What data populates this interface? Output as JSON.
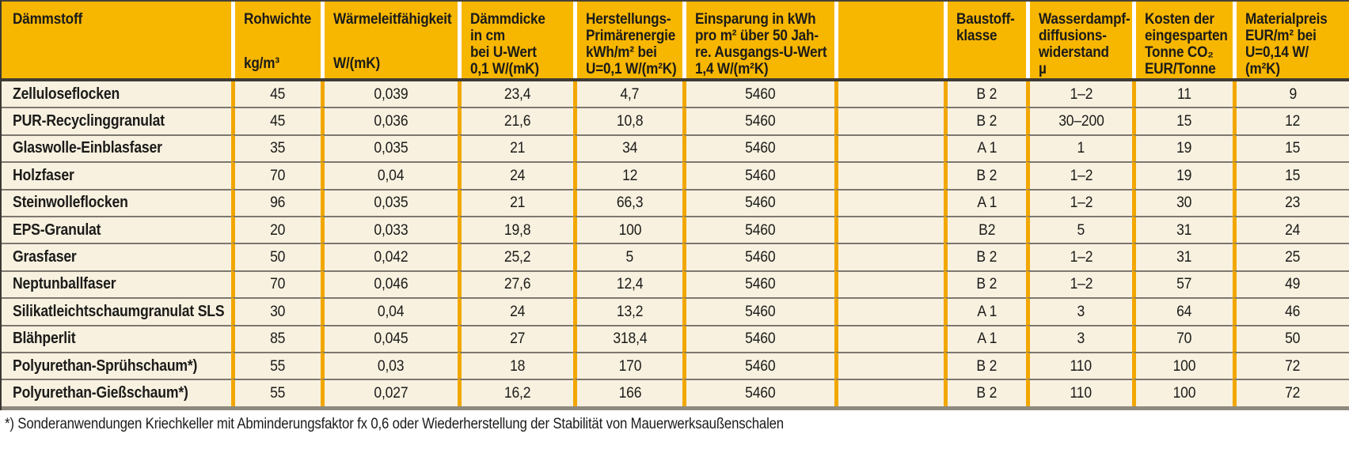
{
  "table": {
    "columns": [
      {
        "label": "Dämmstoff",
        "unit": ""
      },
      {
        "label": "Rohwichte",
        "unit": "kg/m³"
      },
      {
        "label": "Wärmeleitfähigkeit",
        "unit": "W/(mK)"
      },
      {
        "label": "Dämmdicke\nin cm\nbei U-Wert\n0,1 W/(mK)",
        "unit": ""
      },
      {
        "label": "Herstellungs-\nPrimärenergie\nkWh/m² bei\nU=0,1 W/(m²K)",
        "unit": ""
      },
      {
        "label": "Einsparung in kWh\npro m² über 50 Jah-\nre. Ausgangs-U-Wert\n1,4 W/(m²K)",
        "unit": ""
      },
      {
        "label": "",
        "unit": ""
      },
      {
        "label": "Baustoff-\nklasse",
        "unit": ""
      },
      {
        "label": "Wasserdampf-\ndiffusions-\nwiderstand\nµ",
        "unit": ""
      },
      {
        "label": "Kosten der\neingesparten\nTonne CO₂\nEUR/Tonne",
        "unit": ""
      },
      {
        "label": "Materialpreis\nEUR/m² bei\nU=0,14 W/\n(m²K)",
        "unit": ""
      }
    ],
    "rows": [
      [
        "Zelluloseflocken",
        "45",
        "0,039",
        "23,4",
        "4,7",
        "5460",
        "",
        "B 2",
        "1–2",
        "11",
        "9"
      ],
      [
        "PUR-Recyclinggranulat",
        "45",
        "0,036",
        "21,6",
        "10,8",
        "5460",
        "",
        "B 2",
        "30–200",
        "15",
        "12"
      ],
      [
        "Glaswolle-Einblasfaser",
        "35",
        "0,035",
        "21",
        "34",
        "5460",
        "",
        "A 1",
        "1",
        "19",
        "15"
      ],
      [
        "Holzfaser",
        "70",
        "0,04",
        "24",
        "12",
        "5460",
        "",
        "B 2",
        "1–2",
        "19",
        "15"
      ],
      [
        "Steinwolleflocken",
        "96",
        "0,035",
        "21",
        "66,3",
        "5460",
        "",
        "A 1",
        "1–2",
        "30",
        "23"
      ],
      [
        "EPS-Granulat",
        "20",
        "0,033",
        "19,8",
        "100",
        "5460",
        "",
        "B2",
        "5",
        "31",
        "24"
      ],
      [
        "Grasfaser",
        "50",
        "0,042",
        "25,2",
        "5",
        "5460",
        "",
        "B 2",
        "1–2",
        "31",
        "25"
      ],
      [
        "Neptunballfaser",
        "70",
        "0,046",
        "27,6",
        "12,4",
        "5460",
        "",
        "B 2",
        "1–2",
        "57",
        "49"
      ],
      [
        "Silikatleichtschaumgranulat SLS",
        "30",
        "0,04",
        "24",
        "13,2",
        "5460",
        "",
        "A 1",
        "3",
        "64",
        "46"
      ],
      [
        "Blähperlit",
        "85",
        "0,045",
        "27",
        "318,4",
        "5460",
        "",
        "A 1",
        "3",
        "70",
        "50"
      ],
      [
        "Polyurethan-Sprühschaum*)",
        "55",
        "0,03",
        "18",
        "170",
        "5460",
        "",
        "B 2",
        "110",
        "100",
        "72"
      ],
      [
        "Polyurethan-Gießschaum*)",
        "55",
        "0,027",
        "16,2",
        "166",
        "5460",
        "",
        "B 2",
        "110",
        "100",
        "72"
      ]
    ],
    "footnote": "*) Sonderanwendungen Kriechkeller mit Abminderungsfaktor fx 0,6 oder Wiederherstellung der Stabilität von Mauerwerksaußenschalen"
  }
}
